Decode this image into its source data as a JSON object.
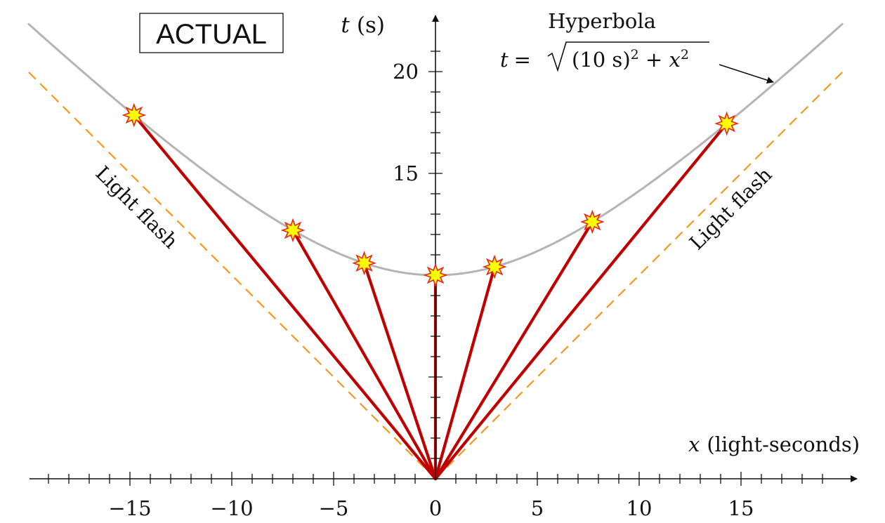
{
  "frame": {
    "label": "ACTUAL"
  },
  "axes": {
    "x_label_var": "x",
    "x_label_unit": "(light-seconds)",
    "t_label_var": "t",
    "t_label_unit": "(s)",
    "x_ticks": [
      -15,
      -10,
      -5,
      0,
      5,
      10,
      15
    ],
    "x_tick_labels": [
      "−15",
      "−10",
      "−5",
      "0",
      "5",
      "10",
      "15"
    ],
    "t_ticks": [
      15,
      20
    ],
    "t_tick_labels": [
      "15",
      "20"
    ],
    "x_range": [
      -20,
      20
    ],
    "t_range": [
      0,
      22
    ]
  },
  "hyperbola": {
    "title": "Hyperbola",
    "eq_lhs": "t =",
    "eq_inner": "(10 s)",
    "eq_sup1": "2",
    "eq_plus": " + ",
    "eq_x": "x",
    "eq_sup2": "2",
    "a_seconds": 10,
    "color": "#b4b4b4"
  },
  "light_flash": {
    "left_label": "Light flash",
    "right_label": "Light flash",
    "color": "#f39a1e"
  },
  "events": {
    "x_values": [
      -14.8,
      -7.0,
      -3.5,
      0,
      2.9,
      7.7,
      14.3
    ],
    "line_color": "#c00000",
    "star_fill": "#ffff00",
    "star_stroke": "#e8241a"
  }
}
